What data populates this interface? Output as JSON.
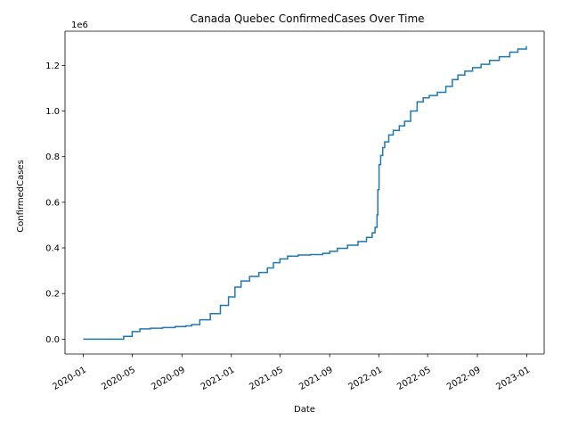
{
  "chart_data": {
    "type": "line",
    "title": "Canada Quebec ConfirmedCases Over Time",
    "xlabel": "Date",
    "ylabel": "ConfirmedCases",
    "y_offset_label": "1e6",
    "line_color": "#1f77b4",
    "xlim": [
      "2019-11-17",
      "2023-02-13"
    ],
    "ylim": [
      -0.065,
      1.35
    ],
    "y_scale": 1000000,
    "x_ticks": [
      "2020-01",
      "2020-05",
      "2020-09",
      "2021-01",
      "2021-05",
      "2021-09",
      "2022-01",
      "2022-05",
      "2022-09",
      "2023-01"
    ],
    "y_ticks": [
      0.0,
      0.2,
      0.4,
      0.6,
      0.8,
      1.0,
      1.2
    ],
    "y_tick_labels": [
      "0.0",
      "0.2",
      "0.4",
      "0.6",
      "0.8",
      "1.0",
      "1.2"
    ],
    "series": [
      {
        "name": "ConfirmedCases",
        "x": [
          "2020-01-01",
          "2020-03-20",
          "2020-04-10",
          "2020-05-01",
          "2020-05-20",
          "2020-06-15",
          "2020-07-15",
          "2020-08-15",
          "2020-09-10",
          "2020-09-25",
          "2020-10-15",
          "2020-11-10",
          "2020-12-05",
          "2020-12-25",
          "2021-01-10",
          "2021-01-25",
          "2021-02-15",
          "2021-03-10",
          "2021-03-31",
          "2021-04-15",
          "2021-05-01",
          "2021-05-20",
          "2021-06-15",
          "2021-07-15",
          "2021-08-15",
          "2021-09-01",
          "2021-09-20",
          "2021-10-15",
          "2021-11-10",
          "2021-12-01",
          "2021-12-15",
          "2021-12-22",
          "2021-12-27",
          "2021-12-29",
          "2022-01-01",
          "2022-01-05",
          "2022-01-10",
          "2022-01-15",
          "2022-01-25",
          "2022-02-05",
          "2022-02-20",
          "2022-03-05",
          "2022-03-20",
          "2022-04-05",
          "2022-04-20",
          "2022-05-05",
          "2022-05-25",
          "2022-06-15",
          "2022-07-01",
          "2022-07-15",
          "2022-08-01",
          "2022-08-20",
          "2022-09-10",
          "2022-10-01",
          "2022-10-25",
          "2022-11-20",
          "2022-12-10",
          "2022-12-31"
        ],
        "values": [
          0,
          0,
          0.012,
          0.033,
          0.045,
          0.048,
          0.051,
          0.055,
          0.058,
          0.064,
          0.085,
          0.112,
          0.148,
          0.185,
          0.228,
          0.255,
          0.275,
          0.292,
          0.312,
          0.335,
          0.352,
          0.364,
          0.369,
          0.371,
          0.376,
          0.385,
          0.398,
          0.412,
          0.428,
          0.446,
          0.466,
          0.49,
          0.545,
          0.655,
          0.765,
          0.805,
          0.84,
          0.865,
          0.895,
          0.915,
          0.935,
          0.955,
          1.0,
          1.04,
          1.058,
          1.068,
          1.082,
          1.108,
          1.138,
          1.158,
          1.175,
          1.19,
          1.205,
          1.222,
          1.238,
          1.258,
          1.272,
          1.285
        ]
      }
    ]
  }
}
